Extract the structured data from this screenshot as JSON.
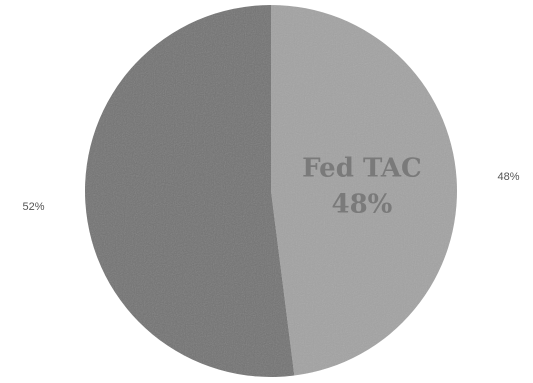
{
  "chart_data": {
    "type": "pie",
    "slices": [
      {
        "value": 48,
        "label": "48%",
        "inside_label": [
          "Fed TAC",
          "48%"
        ],
        "color": "#a3a3a3",
        "label_color": "#7a7a7a"
      },
      {
        "value": 52,
        "label": "52%",
        "inside_label": [],
        "color": "#737373",
        "label_color": "#5a5a5a"
      }
    ],
    "legend": "none"
  }
}
